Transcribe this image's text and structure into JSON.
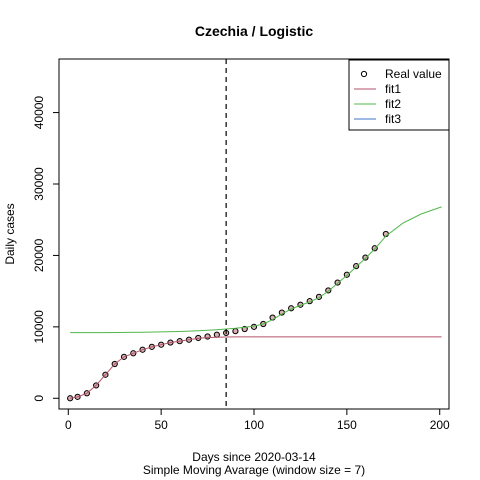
{
  "chart_data": {
    "type": "line",
    "title": "Czechia / Logistic",
    "xlabel": "Days since 2020-03-14",
    "subtitle": "Simple Moving Avarage (window size = 7)",
    "ylabel": "Daily cases",
    "xlim": [
      -5,
      205
    ],
    "ylim": [
      -1500,
      47500
    ],
    "xticks": [
      0,
      50,
      100,
      150,
      200
    ],
    "yticks": [
      0,
      10000,
      20000,
      30000,
      40000
    ],
    "vline_x": 85,
    "grid": false,
    "legend_position": "top-right",
    "legend": [
      {
        "label": "Real value",
        "kind": "point",
        "color": "#000000"
      },
      {
        "label": "fit1",
        "kind": "line",
        "color": "#b5526b"
      },
      {
        "label": "fit2",
        "kind": "line",
        "color": "#4fb84a"
      },
      {
        "label": "fit3",
        "kind": "line",
        "color": "#3d74c8"
      }
    ],
    "series": [
      {
        "name": "Real value",
        "style": "points",
        "color": "#000000",
        "fill": "#d9b0b0",
        "x": [
          1,
          5,
          10,
          15,
          20,
          25,
          30,
          35,
          40,
          45,
          50,
          55,
          60,
          65,
          70,
          75,
          80,
          85,
          90,
          95,
          100,
          105,
          110,
          115,
          120,
          125,
          130,
          135,
          140,
          145,
          150,
          155,
          160,
          165,
          171
        ],
        "y": [
          0,
          200,
          700,
          1800,
          3300,
          4800,
          5800,
          6300,
          6800,
          7200,
          7500,
          7800,
          8000,
          8200,
          8450,
          8650,
          8900,
          9150,
          9400,
          9700,
          10000,
          10400,
          11300,
          12000,
          12600,
          13100,
          13600,
          14200,
          15100,
          16200,
          17300,
          18500,
          19700,
          21000,
          23000
        ]
      },
      {
        "name": "fit1",
        "style": "line",
        "color": "#b5526b",
        "x": [
          1,
          5,
          10,
          15,
          20,
          25,
          30,
          35,
          40,
          45,
          50,
          55,
          60,
          65,
          70,
          75,
          80,
          85,
          90,
          100,
          110,
          120,
          140,
          160,
          180,
          201
        ],
        "y": [
          0,
          200,
          700,
          1800,
          3300,
          4800,
          5800,
          6300,
          6800,
          7200,
          7500,
          7800,
          8000,
          8200,
          8400,
          8500,
          8550,
          8580,
          8590,
          8595,
          8598,
          8600,
          8600,
          8600,
          8600,
          8600
        ]
      },
      {
        "name": "fit2",
        "style": "line",
        "color": "#4fb84a",
        "x": [
          1,
          20,
          40,
          60,
          70,
          80,
          85,
          90,
          95,
          100,
          105,
          110,
          115,
          120,
          125,
          130,
          135,
          140,
          145,
          150,
          155,
          160,
          165,
          171,
          180,
          190,
          201
        ],
        "y": [
          9200,
          9200,
          9250,
          9350,
          9450,
          9600,
          9700,
          9800,
          9950,
          10100,
          10400,
          11000,
          11800,
          12500,
          13000,
          13500,
          14100,
          15000,
          16100,
          17200,
          18400,
          19600,
          20900,
          22700,
          24500,
          25800,
          26800
        ]
      },
      {
        "name": "fit3",
        "style": "line",
        "color": "#3d74c8",
        "x": [],
        "y": []
      }
    ]
  }
}
